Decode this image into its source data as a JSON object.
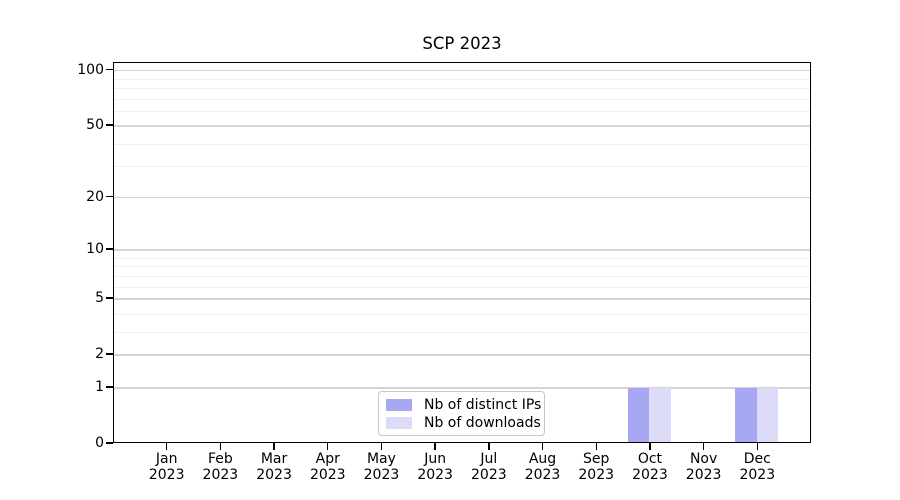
{
  "chart_data": {
    "type": "bar",
    "title": "SCP 2023",
    "categories": [
      "Jan 2023",
      "Feb 2023",
      "Mar 2023",
      "Apr 2023",
      "May 2023",
      "Jun 2023",
      "Jul 2023",
      "Aug 2023",
      "Sep 2023",
      "Oct 2023",
      "Nov 2023",
      "Dec 2023"
    ],
    "series": [
      {
        "name": "Nb of distinct IPs",
        "color": "#a8a8f2",
        "values": [
          0,
          0,
          0,
          0,
          0,
          0,
          0,
          0,
          0,
          1,
          0,
          1
        ]
      },
      {
        "name": "Nb of downloads",
        "color": "#dcdcf9",
        "values": [
          0,
          0,
          0,
          0,
          0,
          0,
          0,
          0,
          0,
          1,
          0,
          1
        ]
      }
    ],
    "xlabel": "",
    "ylabel": "",
    "yscale": "log1p",
    "ylim": [
      0,
      110
    ],
    "y_major_ticks": [
      0,
      1,
      2,
      5,
      10,
      20,
      50,
      100
    ],
    "y_minor_gridlines": [
      3,
      4,
      6,
      7,
      8,
      9,
      30,
      40,
      60,
      70,
      80,
      90
    ],
    "grid": "horizontal",
    "legend_position": "inside lower-center",
    "colors": {
      "major_grid": "#d4d4d4",
      "minor_grid": "#f0f0f0",
      "axis": "#000000",
      "background": "#ffffff"
    }
  }
}
